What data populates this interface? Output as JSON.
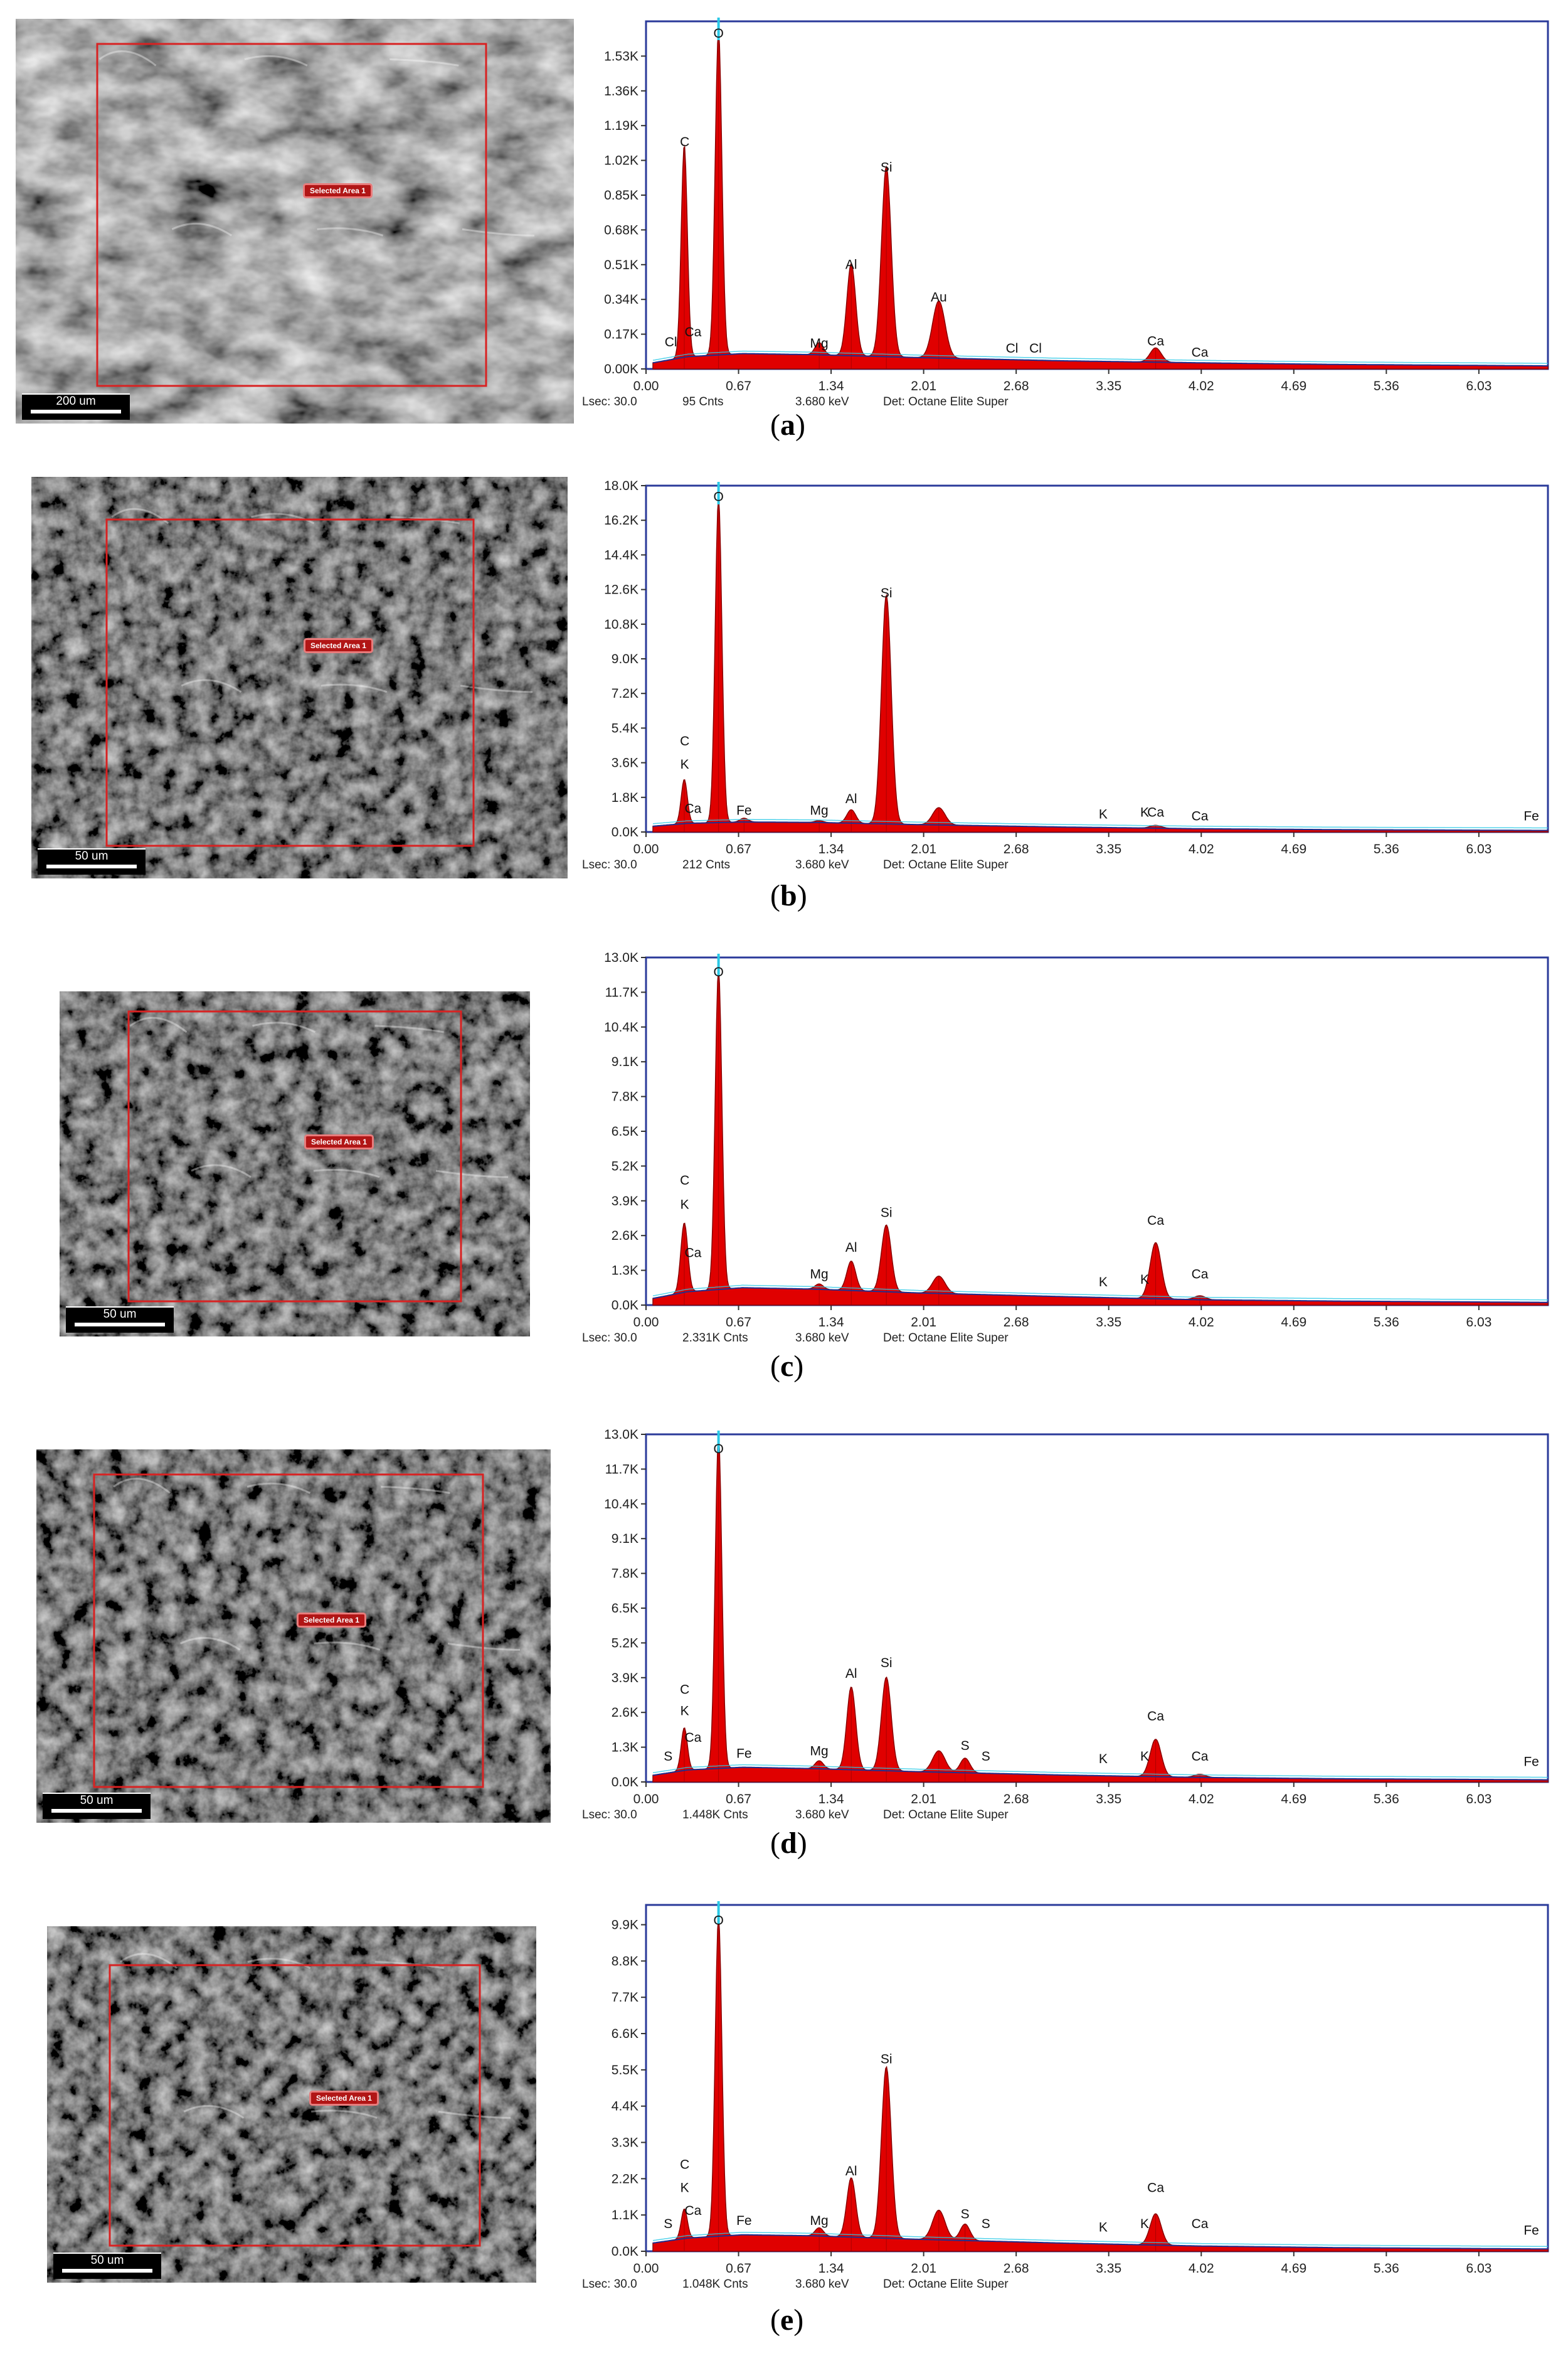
{
  "colors": {
    "peak_fill": "#e00000",
    "peak_outline": "#8a0000",
    "background_line": "#1f2f8f",
    "marker": "#29c8e6",
    "frame": "#2a3a9a",
    "selection_box": "#d82222"
  },
  "icons": {
    "sem_image": "sem-micrograph-image",
    "selection": "red-selection-rectangle"
  },
  "chart_data": [
    {
      "type": "area",
      "panel": "a",
      "caption": "a",
      "sem": {
        "selected_area_label": "Selected Area 1",
        "scale_bar": "200 um"
      },
      "xlim": [
        0.0,
        6.53
      ],
      "x_ticks": [
        "0.00",
        "0.67",
        "1.34",
        "2.01",
        "2.68",
        "3.35",
        "4.02",
        "4.69",
        "5.36",
        "6.03"
      ],
      "ylim": [
        0,
        1700
      ],
      "y_ticks": [
        {
          "v": 0,
          "t": "0.00K"
        },
        {
          "v": 170,
          "t": "0.17K"
        },
        {
          "v": 340,
          "t": "0.34K"
        },
        {
          "v": 510,
          "t": "0.51K"
        },
        {
          "v": 680,
          "t": "0.68K"
        },
        {
          "v": 850,
          "t": "0.85K"
        },
        {
          "v": 1020,
          "t": "1.02K"
        },
        {
          "v": 1190,
          "t": "1.19K"
        },
        {
          "v": 1360,
          "t": "1.36K"
        },
        {
          "v": 1530,
          "t": "1.53K"
        }
      ],
      "baseline": [
        [
          0.05,
          30
        ],
        [
          0.3,
          60
        ],
        [
          0.7,
          75
        ],
        [
          1.2,
          70
        ],
        [
          2.0,
          55
        ],
        [
          3.0,
          40
        ],
        [
          4.0,
          30
        ],
        [
          5.0,
          22
        ],
        [
          6.53,
          15
        ]
      ],
      "peaks": [
        {
          "el": "C",
          "x": 0.277,
          "y": 1040,
          "w": 0.022
        },
        {
          "el": "O",
          "x": 0.525,
          "y": 1590,
          "w": 0.024
        },
        {
          "el": "Mg",
          "x": 1.254,
          "y": 60,
          "w": 0.03
        },
        {
          "el": "Al",
          "x": 1.486,
          "y": 450,
          "w": 0.032
        },
        {
          "el": "Si",
          "x": 1.74,
          "y": 930,
          "w": 0.035
        },
        {
          "el": "Au",
          "x": 2.12,
          "y": 280,
          "w": 0.045
        },
        {
          "el": "Ca",
          "x": 3.69,
          "y": 70,
          "w": 0.04
        }
      ],
      "labels": [
        {
          "t": "Cl",
          "x": 0.18,
          "y": 110
        },
        {
          "t": "Ca",
          "x": 0.34,
          "y": 160
        },
        {
          "t": "C",
          "x": 0.28,
          "y": 1090
        },
        {
          "t": "O",
          "x": 0.525,
          "y": 1620
        },
        {
          "t": "Mg",
          "x": 1.254,
          "y": 105
        },
        {
          "t": "Al",
          "x": 1.486,
          "y": 490
        },
        {
          "t": "Si",
          "x": 1.74,
          "y": 965
        },
        {
          "t": "Au",
          "x": 2.12,
          "y": 330
        },
        {
          "t": "Cl",
          "x": 2.65,
          "y": 80
        },
        {
          "t": "Cl",
          "x": 2.82,
          "y": 80
        },
        {
          "t": "Ca",
          "x": 3.69,
          "y": 115
        },
        {
          "t": "Ca",
          "x": 4.01,
          "y": 60
        }
      ],
      "footer": {
        "lsec": "Lsec: 30.0",
        "cnts": "95 Cnts",
        "kev": "3.680 keV",
        "det": "Det: Octane Elite Super"
      }
    },
    {
      "type": "area",
      "panel": "b",
      "caption": "b",
      "sem": {
        "selected_area_label": "Selected Area 1",
        "scale_bar": "50 um"
      },
      "xlim": [
        0.0,
        6.53
      ],
      "x_ticks": [
        "0.00",
        "0.67",
        "1.34",
        "2.01",
        "2.68",
        "3.35",
        "4.02",
        "4.69",
        "5.36",
        "6.03"
      ],
      "ylim": [
        0,
        18000
      ],
      "y_ticks": [
        {
          "v": 0,
          "t": "0.0K"
        },
        {
          "v": 1800,
          "t": "1.8K"
        },
        {
          "v": 3600,
          "t": "3.6K"
        },
        {
          "v": 5400,
          "t": "5.4K"
        },
        {
          "v": 7200,
          "t": "7.2K"
        },
        {
          "v": 9000,
          "t": "9.0K"
        },
        {
          "v": 10800,
          "t": "10.8K"
        },
        {
          "v": 12600,
          "t": "12.6K"
        },
        {
          "v": 14400,
          "t": "14.4K"
        },
        {
          "v": 16200,
          "t": "16.2K"
        },
        {
          "v": 18000,
          "t": "18.0K"
        }
      ],
      "baseline": [
        [
          0.05,
          300
        ],
        [
          0.3,
          450
        ],
        [
          0.7,
          520
        ],
        [
          1.2,
          500
        ],
        [
          2.0,
          380
        ],
        [
          3.0,
          260
        ],
        [
          4.0,
          170
        ],
        [
          5.0,
          120
        ],
        [
          6.53,
          80
        ]
      ],
      "peaks": [
        {
          "el": "C",
          "x": 0.277,
          "y": 2300,
          "w": 0.022
        },
        {
          "el": "O",
          "x": 0.525,
          "y": 16900,
          "w": 0.024
        },
        {
          "el": "Fe",
          "x": 0.71,
          "y": 200,
          "w": 0.03
        },
        {
          "el": "Mg",
          "x": 1.254,
          "y": 100,
          "w": 0.03
        },
        {
          "el": "Al",
          "x": 1.486,
          "y": 700,
          "w": 0.032
        },
        {
          "el": "Si",
          "x": 1.74,
          "y": 11900,
          "w": 0.035
        },
        {
          "el": "",
          "x": 2.12,
          "y": 900,
          "w": 0.045
        },
        {
          "el": "Ca",
          "x": 3.69,
          "y": 150,
          "w": 0.04
        }
      ],
      "labels": [
        {
          "t": "C",
          "x": 0.28,
          "y": 4500
        },
        {
          "t": "K",
          "x": 0.28,
          "y": 3300
        },
        {
          "t": "Ca",
          "x": 0.34,
          "y": 1000
        },
        {
          "t": "O",
          "x": 0.525,
          "y": 17200
        },
        {
          "t": "Fe",
          "x": 0.71,
          "y": 900
        },
        {
          "t": "Mg",
          "x": 1.254,
          "y": 900
        },
        {
          "t": "Al",
          "x": 1.486,
          "y": 1500
        },
        {
          "t": "Si",
          "x": 1.74,
          "y": 12200
        },
        {
          "t": "K",
          "x": 3.31,
          "y": 700
        },
        {
          "t": "K",
          "x": 3.61,
          "y": 800
        },
        {
          "t": "Ca",
          "x": 3.69,
          "y": 800
        },
        {
          "t": "Ca",
          "x": 4.01,
          "y": 600
        },
        {
          "t": "Fe",
          "x": 6.41,
          "y": 600
        }
      ],
      "footer": {
        "lsec": "Lsec: 30.0",
        "cnts": "212 Cnts",
        "kev": "3.680 keV",
        "det": "Det: Octane Elite Super"
      }
    },
    {
      "type": "area",
      "panel": "c",
      "caption": "c",
      "sem": {
        "selected_area_label": "Selected Area 1",
        "scale_bar": "50 um"
      },
      "xlim": [
        0.0,
        6.53
      ],
      "x_ticks": [
        "0.00",
        "0.67",
        "1.34",
        "2.01",
        "2.68",
        "3.35",
        "4.02",
        "4.69",
        "5.36",
        "6.03"
      ],
      "ylim": [
        0,
        13000
      ],
      "y_ticks": [
        {
          "v": 0,
          "t": "0.0K"
        },
        {
          "v": 1300,
          "t": "1.3K"
        },
        {
          "v": 2600,
          "t": "2.6K"
        },
        {
          "v": 3900,
          "t": "3.9K"
        },
        {
          "v": 5200,
          "t": "5.2K"
        },
        {
          "v": 6500,
          "t": "6.5K"
        },
        {
          "v": 7800,
          "t": "7.8K"
        },
        {
          "v": 9100,
          "t": "9.1K"
        },
        {
          "v": 10400,
          "t": "10.4K"
        },
        {
          "v": 11700,
          "t": "11.7K"
        },
        {
          "v": 13000,
          "t": "13.0K"
        }
      ],
      "baseline": [
        [
          0.05,
          250
        ],
        [
          0.3,
          500
        ],
        [
          0.7,
          650
        ],
        [
          1.2,
          600
        ],
        [
          2.0,
          450
        ],
        [
          3.0,
          320
        ],
        [
          4.0,
          200
        ],
        [
          5.0,
          150
        ],
        [
          6.53,
          100
        ]
      ],
      "peaks": [
        {
          "el": "C",
          "x": 0.277,
          "y": 2600,
          "w": 0.025
        },
        {
          "el": "O",
          "x": 0.525,
          "y": 12000,
          "w": 0.024
        },
        {
          "el": "Mg",
          "x": 1.254,
          "y": 200,
          "w": 0.03
        },
        {
          "el": "Al",
          "x": 1.486,
          "y": 1100,
          "w": 0.032
        },
        {
          "el": "Si",
          "x": 1.74,
          "y": 2500,
          "w": 0.035
        },
        {
          "el": "",
          "x": 2.12,
          "y": 650,
          "w": 0.045
        },
        {
          "el": "Ca",
          "x": 3.69,
          "y": 2100,
          "w": 0.04
        },
        {
          "el": "Ca",
          "x": 4.01,
          "y": 150,
          "w": 0.04
        }
      ],
      "labels": [
        {
          "t": "C",
          "x": 0.28,
          "y": 4500
        },
        {
          "t": "K",
          "x": 0.28,
          "y": 3600
        },
        {
          "t": "Ca",
          "x": 0.34,
          "y": 1800
        },
        {
          "t": "O",
          "x": 0.525,
          "y": 12300
        },
        {
          "t": "Mg",
          "x": 1.254,
          "y": 1000
        },
        {
          "t": "Al",
          "x": 1.486,
          "y": 2000
        },
        {
          "t": "Si",
          "x": 1.74,
          "y": 3300
        },
        {
          "t": "K",
          "x": 3.31,
          "y": 700
        },
        {
          "t": "K",
          "x": 3.61,
          "y": 800
        },
        {
          "t": "Ca",
          "x": 3.69,
          "y": 3000
        },
        {
          "t": "Ca",
          "x": 4.01,
          "y": 1000
        }
      ],
      "footer": {
        "lsec": "Lsec: 30.0",
        "cnts": "2.331K Cnts",
        "kev": "3.680 keV",
        "det": "Det: Octane Elite Super"
      }
    },
    {
      "type": "area",
      "panel": "d",
      "caption": "d",
      "sem": {
        "selected_area_label": "Selected Area 1",
        "scale_bar": "50 um"
      },
      "xlim": [
        0.0,
        6.53
      ],
      "x_ticks": [
        "0.00",
        "0.67",
        "1.34",
        "2.01",
        "2.68",
        "3.35",
        "4.02",
        "4.69",
        "5.36",
        "6.03"
      ],
      "ylim": [
        0,
        13000
      ],
      "y_ticks": [
        {
          "v": 0,
          "t": "0.0K"
        },
        {
          "v": 1300,
          "t": "1.3K"
        },
        {
          "v": 2600,
          "t": "2.6K"
        },
        {
          "v": 3900,
          "t": "3.9K"
        },
        {
          "v": 5200,
          "t": "5.2K"
        },
        {
          "v": 6500,
          "t": "6.5K"
        },
        {
          "v": 7800,
          "t": "7.8K"
        },
        {
          "v": 9100,
          "t": "9.1K"
        },
        {
          "v": 10400,
          "t": "10.4K"
        },
        {
          "v": 11700,
          "t": "11.7K"
        },
        {
          "v": 13000,
          "t": "13.0K"
        }
      ],
      "baseline": [
        [
          0.05,
          250
        ],
        [
          0.3,
          450
        ],
        [
          0.7,
          550
        ],
        [
          1.2,
          500
        ],
        [
          2.0,
          380
        ],
        [
          3.0,
          260
        ],
        [
          4.0,
          170
        ],
        [
          5.0,
          120
        ],
        [
          6.53,
          80
        ]
      ],
      "peaks": [
        {
          "el": "C",
          "x": 0.277,
          "y": 1600,
          "w": 0.022
        },
        {
          "el": "O",
          "x": 0.525,
          "y": 12500,
          "w": 0.024
        },
        {
          "el": "Mg",
          "x": 1.254,
          "y": 300,
          "w": 0.03
        },
        {
          "el": "Al",
          "x": 1.486,
          "y": 3100,
          "w": 0.032
        },
        {
          "el": "Si",
          "x": 1.74,
          "y": 3500,
          "w": 0.035
        },
        {
          "el": "",
          "x": 2.12,
          "y": 800,
          "w": 0.045
        },
        {
          "el": "S",
          "x": 2.31,
          "y": 550,
          "w": 0.035
        },
        {
          "el": "Ca",
          "x": 3.69,
          "y": 1400,
          "w": 0.04
        },
        {
          "el": "Ca",
          "x": 4.01,
          "y": 120,
          "w": 0.04
        }
      ],
      "labels": [
        {
          "t": "S",
          "x": 0.16,
          "y": 800
        },
        {
          "t": "C",
          "x": 0.28,
          "y": 3300
        },
        {
          "t": "K",
          "x": 0.28,
          "y": 2500
        },
        {
          "t": "Ca",
          "x": 0.34,
          "y": 1500
        },
        {
          "t": "O",
          "x": 0.525,
          "y": 12300
        },
        {
          "t": "Fe",
          "x": 0.71,
          "y": 900
        },
        {
          "t": "Mg",
          "x": 1.254,
          "y": 1000
        },
        {
          "t": "Al",
          "x": 1.486,
          "y": 3900
        },
        {
          "t": "Si",
          "x": 1.74,
          "y": 4300
        },
        {
          "t": "S",
          "x": 2.31,
          "y": 1200
        },
        {
          "t": "S",
          "x": 2.46,
          "y": 800
        },
        {
          "t": "K",
          "x": 3.31,
          "y": 700
        },
        {
          "t": "K",
          "x": 3.61,
          "y": 800
        },
        {
          "t": "Ca",
          "x": 3.69,
          "y": 2300
        },
        {
          "t": "Ca",
          "x": 4.01,
          "y": 800
        },
        {
          "t": "Fe",
          "x": 6.41,
          "y": 600
        }
      ],
      "footer": {
        "lsec": "Lsec: 30.0",
        "cnts": "1.448K Cnts",
        "kev": "3.680 keV",
        "det": "Det: Octane Elite Super"
      }
    },
    {
      "type": "area",
      "panel": "e",
      "caption": "e",
      "sem": {
        "selected_area_label": "Selected Area 1",
        "scale_bar": "50 um"
      },
      "xlim": [
        0.0,
        6.53
      ],
      "x_ticks": [
        "0.00",
        "0.67",
        "1.34",
        "2.01",
        "2.68",
        "3.35",
        "4.02",
        "4.69",
        "5.36",
        "6.03"
      ],
      "ylim": [
        0,
        10500
      ],
      "y_ticks": [
        {
          "v": 0,
          "t": "0.0K"
        },
        {
          "v": 1100,
          "t": "1.1K"
        },
        {
          "v": 2200,
          "t": "2.2K"
        },
        {
          "v": 3300,
          "t": "3.3K"
        },
        {
          "v": 4400,
          "t": "4.4K"
        },
        {
          "v": 5500,
          "t": "5.5K"
        },
        {
          "v": 6600,
          "t": "6.6K"
        },
        {
          "v": 7700,
          "t": "7.7K"
        },
        {
          "v": 8800,
          "t": "8.8K"
        },
        {
          "v": 9900,
          "t": "9.9K"
        }
      ],
      "baseline": [
        [
          0.05,
          250
        ],
        [
          0.3,
          400
        ],
        [
          0.7,
          500
        ],
        [
          1.2,
          470
        ],
        [
          2.0,
          360
        ],
        [
          3.0,
          250
        ],
        [
          4.0,
          160
        ],
        [
          5.0,
          110
        ],
        [
          6.53,
          70
        ]
      ],
      "peaks": [
        {
          "el": "C",
          "x": 0.277,
          "y": 900,
          "w": 0.022
        },
        {
          "el": "O",
          "x": 0.525,
          "y": 9700,
          "w": 0.024
        },
        {
          "el": "Mg",
          "x": 1.254,
          "y": 250,
          "w": 0.03
        },
        {
          "el": "Al",
          "x": 1.486,
          "y": 1800,
          "w": 0.032
        },
        {
          "el": "Si",
          "x": 1.74,
          "y": 5200,
          "w": 0.035
        },
        {
          "el": "",
          "x": 2.12,
          "y": 900,
          "w": 0.045
        },
        {
          "el": "S",
          "x": 2.31,
          "y": 500,
          "w": 0.035
        },
        {
          "el": "Ca",
          "x": 3.69,
          "y": 950,
          "w": 0.04
        }
      ],
      "labels": [
        {
          "t": "S",
          "x": 0.16,
          "y": 700
        },
        {
          "t": "C",
          "x": 0.28,
          "y": 2500
        },
        {
          "t": "K",
          "x": 0.28,
          "y": 1800
        },
        {
          "t": "Ca",
          "x": 0.34,
          "y": 1100
        },
        {
          "t": "O",
          "x": 0.525,
          "y": 9900
        },
        {
          "t": "Fe",
          "x": 0.71,
          "y": 800
        },
        {
          "t": "Mg",
          "x": 1.254,
          "y": 800
        },
        {
          "t": "Al",
          "x": 1.486,
          "y": 2300
        },
        {
          "t": "Si",
          "x": 1.74,
          "y": 5700
        },
        {
          "t": "S",
          "x": 2.31,
          "y": 1000
        },
        {
          "t": "S",
          "x": 2.46,
          "y": 700
        },
        {
          "t": "K",
          "x": 3.31,
          "y": 600
        },
        {
          "t": "K",
          "x": 3.61,
          "y": 700
        },
        {
          "t": "Ca",
          "x": 3.69,
          "y": 1800
        },
        {
          "t": "Ca",
          "x": 4.01,
          "y": 700
        },
        {
          "t": "Fe",
          "x": 6.41,
          "y": 500
        }
      ],
      "footer": {
        "lsec": "Lsec: 30.0",
        "cnts": "1.048K Cnts",
        "kev": "3.680 keV",
        "det": "Det: Octane Elite Super"
      }
    }
  ]
}
